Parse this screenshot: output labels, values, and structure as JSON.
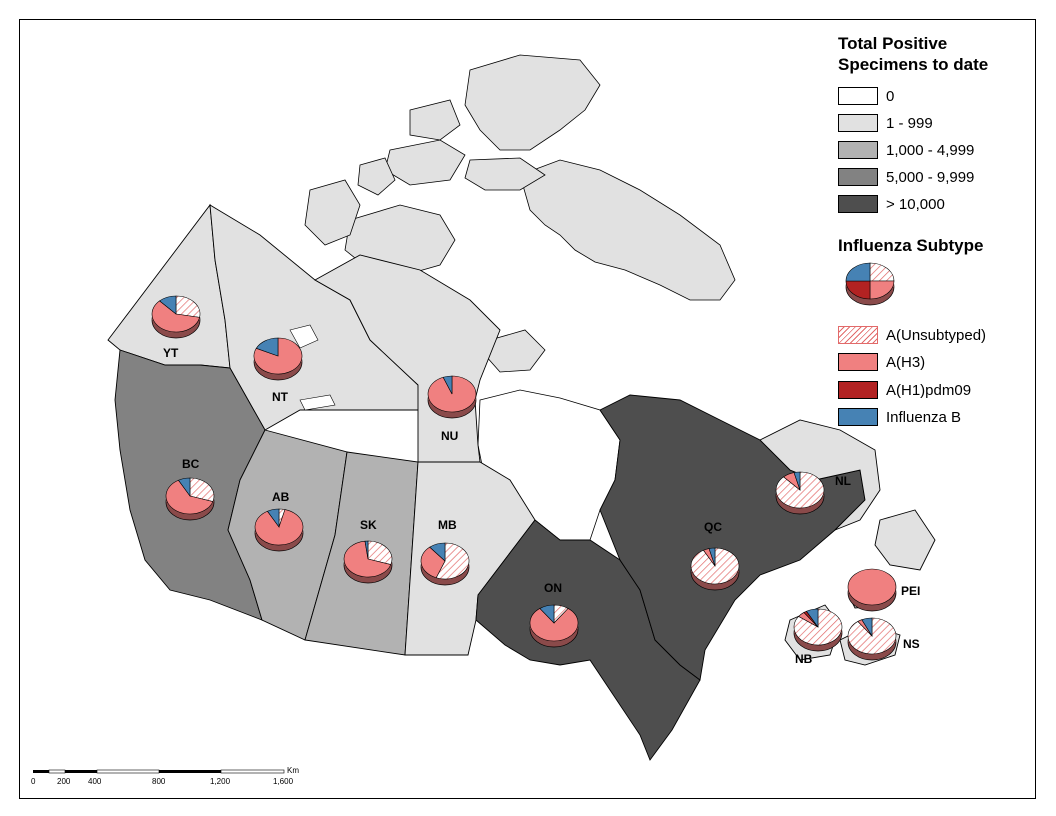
{
  "legend": {
    "specimens_title": "Total Positive Specimens to date",
    "specimen_classes": [
      {
        "label": "0",
        "color": "#ffffff"
      },
      {
        "label": "1 - 999",
        "color": "#e1e1e1"
      },
      {
        "label": "1,000 - 4,999",
        "color": "#b2b2b2"
      },
      {
        "label": "5,000 - 9,999",
        "color": "#828282"
      },
      {
        "label": "> 10,000",
        "color": "#4e4e4e"
      }
    ],
    "subtype_title": "Influenza Subtype",
    "subtypes": [
      {
        "label": "A(Unsubtyped)",
        "color": "#ffffff",
        "pattern": "hatch"
      },
      {
        "label": "A(H3)",
        "color": "#f08080"
      },
      {
        "label": "A(H1)pdm09",
        "color": "#b22222"
      },
      {
        "label": "Influenza B",
        "color": "#4682b4"
      }
    ]
  },
  "provinces": [
    {
      "code": "YT",
      "specimen_class": "1 - 999"
    },
    {
      "code": "NT",
      "specimen_class": "1 - 999"
    },
    {
      "code": "NU",
      "specimen_class": "1 - 999"
    },
    {
      "code": "BC",
      "specimen_class": "5,000 - 9,999"
    },
    {
      "code": "AB",
      "specimen_class": "1,000 - 4,999"
    },
    {
      "code": "SK",
      "specimen_class": "1,000 - 4,999"
    },
    {
      "code": "MB",
      "specimen_class": "1 - 999"
    },
    {
      "code": "ON",
      "specimen_class": "> 10,000"
    },
    {
      "code": "QC",
      "specimen_class": "> 10,000"
    },
    {
      "code": "NL",
      "specimen_class": "1 - 999"
    },
    {
      "code": "NB",
      "specimen_class": "1 - 999"
    },
    {
      "code": "NS",
      "specimen_class": "1 - 999"
    },
    {
      "code": "PEI",
      "specimen_class": "1 - 999"
    }
  ],
  "pies": [
    {
      "code": "YT",
      "shares": {
        "unsub": 0.28,
        "h3": 0.6,
        "h1": 0.0,
        "b": 0.12
      }
    },
    {
      "code": "NT",
      "shares": {
        "unsub": 0.0,
        "h3": 0.82,
        "h1": 0.0,
        "b": 0.18
      }
    },
    {
      "code": "NU",
      "shares": {
        "unsub": 0.0,
        "h3": 0.94,
        "h1": 0.0,
        "b": 0.06
      }
    },
    {
      "code": "BC",
      "shares": {
        "unsub": 0.3,
        "h3": 0.62,
        "h1": 0.0,
        "b": 0.08
      }
    },
    {
      "code": "AB",
      "shares": {
        "unsub": 0.04,
        "h3": 0.88,
        "h1": 0.0,
        "b": 0.08
      }
    },
    {
      "code": "SK",
      "shares": {
        "unsub": 0.3,
        "h3": 0.68,
        "h1": 0.0,
        "b": 0.02
      }
    },
    {
      "code": "MB",
      "shares": {
        "unsub": 0.56,
        "h3": 0.33,
        "h1": 0.0,
        "b": 0.11
      }
    },
    {
      "code": "ON",
      "shares": {
        "unsub": 0.1,
        "h3": 0.8,
        "h1": 0.0,
        "b": 0.1
      }
    },
    {
      "code": "QC",
      "shares": {
        "unsub": 0.92,
        "h3": 0.04,
        "h1": 0.0,
        "b": 0.04
      }
    },
    {
      "code": "NL",
      "shares": {
        "unsub": 0.88,
        "h3": 0.08,
        "h1": 0.0,
        "b": 0.04
      }
    },
    {
      "code": "PEI",
      "shares": {
        "unsub": 0.0,
        "h3": 1.0,
        "h1": 0.0,
        "b": 0.0
      }
    },
    {
      "code": "NB",
      "shares": {
        "unsub": 0.85,
        "h3": 0.05,
        "h1": 0.02,
        "b": 0.08
      }
    },
    {
      "code": "NS",
      "shares": {
        "unsub": 0.9,
        "h3": 0.03,
        "h1": 0.0,
        "b": 0.07
      }
    }
  ],
  "scale_bar": {
    "ticks": [
      "0",
      "200",
      "400",
      "800",
      "1,200",
      "1,600"
    ],
    "unit": "Km"
  }
}
